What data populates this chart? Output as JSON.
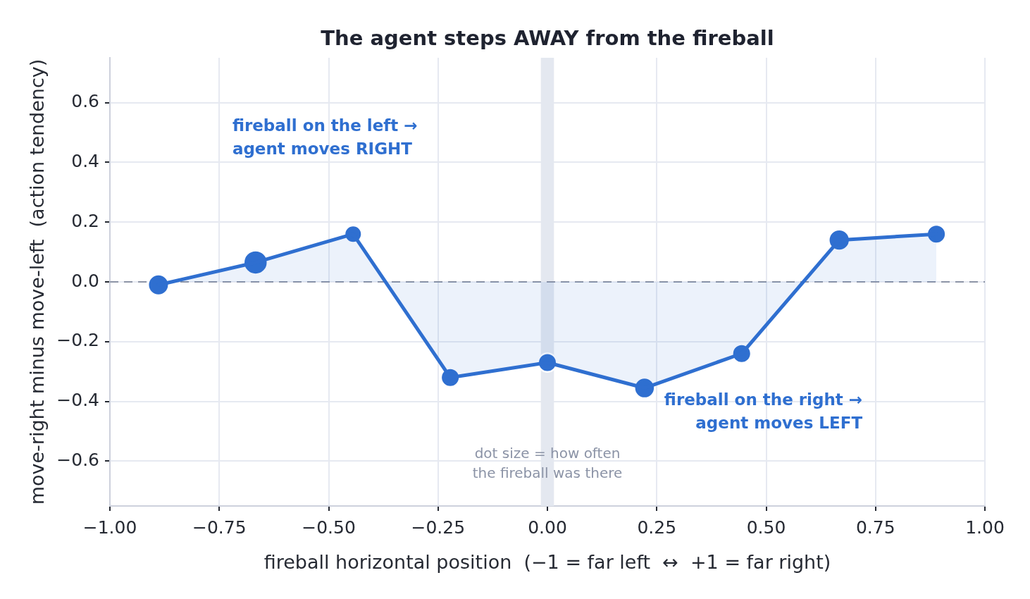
{
  "chart_data": {
    "type": "area",
    "title": "The agent steps AWAY from the fireball",
    "xlabel": "fireball horizontal position  (−1 = far left  ↔  +1 = far right)",
    "ylabel": "move-right minus move-left  (action tendency)",
    "series": [
      {
        "color": "#2f6fd0",
        "x": [
          -0.889,
          -0.667,
          -0.444,
          -0.222,
          0,
          0.222,
          0.444,
          0.667,
          0.889
        ],
        "values": [
          -0.01,
          0.065,
          0.16,
          -0.32,
          -0.27,
          -0.355,
          -0.24,
          0.14,
          0.16
        ]
      },
      {
        "type": "bubble",
        "marker": "circle",
        "color": "#2f6fd0",
        "x": [
          -0.889,
          -0.667,
          -0.444,
          -0.222,
          0,
          0.222,
          0.444,
          0.667,
          0.889
        ],
        "values": [
          -0.01,
          0.065,
          0.16,
          -0.32,
          -0.27,
          -0.355,
          -0.24,
          0.14,
          0.16
        ],
        "sizes": [
          0.75,
          1,
          0.52,
          0.61,
          0.61,
          0.73,
          0.61,
          0.77,
          0.61
        ]
      }
    ],
    "line_style": "solid",
    "xlim": [
      -1,
      1
    ],
    "xticks": [
      {
        "value": -1,
        "label": "−1.00"
      },
      {
        "value": -0.75,
        "label": "−0.75"
      },
      {
        "value": -0.5,
        "label": "−0.50"
      },
      {
        "value": -0.25,
        "label": "−0.25"
      },
      {
        "value": 0,
        "label": "0.00"
      },
      0.25,
      {
        "value": 0.5,
        "label": "0.50"
      },
      0.75,
      {
        "value": 1,
        "label": "1.00"
      }
    ],
    "ylim": [
      -0.75,
      0.75
    ],
    "yticks": [
      {
        "value": -0.6,
        "label": "−0.6"
      },
      {
        "value": -0.4,
        "label": "−0.4"
      },
      {
        "value": -0.2,
        "label": "−0.2"
      },
      {
        "value": 0,
        "label": "0.0"
      },
      0.2,
      0.4,
      0.6
    ],
    "grid": true,
    "legend": false,
    "ref_lines": [
      {
        "axis": "y",
        "value": 0,
        "color": "#8c94a6",
        "line_style": "dashed"
      }
    ],
    "bands": [
      {
        "axis": "x",
        "from": -0.015,
        "to": 0.015,
        "color": "#e4e8f0"
      }
    ],
    "annotations": [
      "fireball on the left →\nagent moves RIGHT",
      "fireball on the right →\nagent moves LEFT",
      "dot size = how often\nthe fireball was there"
    ]
  }
}
